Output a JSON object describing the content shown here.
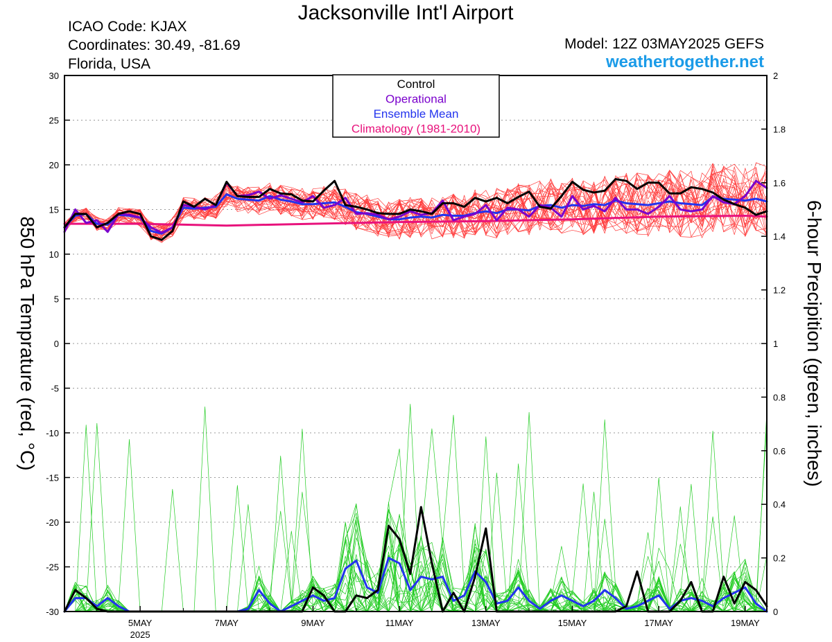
{
  "header": {
    "title": "Jacksonville Int'l Airport",
    "icao": "ICAO Code: KJAX",
    "coordinates": "Coordinates: 30.49, -81.69",
    "region": "Florida, USA",
    "model": "Model: 12Z 03MAY2025 GEFS",
    "site": "weathertogether.net"
  },
  "chart_data": {
    "type": "line",
    "xaxis": {
      "tick_labels": [
        "5MAY",
        "7MAY",
        "9MAY",
        "11MAY",
        "13MAY",
        "15MAY",
        "17MAY",
        "19MAY"
      ],
      "tick_days": [
        5,
        7,
        9,
        11,
        13,
        15,
        17,
        19
      ],
      "year_label": "2025",
      "range_days": [
        3.25,
        19.5
      ]
    },
    "ylabel_left": "850 hPa Temprature (red, °C)",
    "ylabel_right": "6-hour Precipition (green, inches)",
    "ylim_left": [
      -30,
      30
    ],
    "yticks_left": [
      30,
      25,
      20,
      15,
      10,
      5,
      0,
      -5,
      -10,
      -15,
      -20,
      -25,
      -30
    ],
    "ylim_right": [
      0,
      2
    ],
    "yticks_right": [
      2,
      1.8,
      1.6,
      1.4,
      1.2,
      1,
      0.8,
      0.6,
      0.4,
      0.2,
      0
    ],
    "grid": "horizontal dotted",
    "legend": {
      "placement": "top-center",
      "entries": [
        {
          "label": "Control",
          "color": "#000000"
        },
        {
          "label": "Operational",
          "color": "#7a00cc"
        },
        {
          "label": "Ensemble Mean",
          "color": "#2233ee"
        },
        {
          "label": "Climatology (1981-2010)",
          "color": "#e8127c"
        }
      ]
    },
    "colors": {
      "member_temp": "#ff3b3b",
      "member_precip": "#22cc22",
      "control": "#000000",
      "operational": "#7a00cc",
      "mean": "#2233ee",
      "climatology": "#e8127c"
    },
    "temperature": {
      "control": {
        "x": [
          3.25,
          3.5,
          3.75,
          4,
          4.25,
          4.5,
          4.75,
          5,
          5.25,
          5.5,
          5.75,
          6,
          6.25,
          6.5,
          6.75,
          7,
          7.25,
          7.5,
          7.75,
          8,
          8.25,
          8.5,
          8.75,
          9,
          9.25,
          9.5,
          9.75,
          10,
          10.25,
          10.5,
          10.75,
          11,
          11.25,
          11.5,
          11.75,
          12,
          12.25,
          12.5,
          12.75,
          13,
          13.25,
          13.5,
          13.75,
          14,
          14.25,
          14.5,
          14.75,
          15,
          15.25,
          15.5,
          15.75,
          16,
          16.25,
          16.5,
          16.75,
          17,
          17.25,
          17.5,
          17.75,
          18,
          18.25,
          18.5,
          18.75,
          19,
          19.25,
          19.5
        ],
        "y": [
          13,
          14.5,
          14.5,
          13,
          13.5,
          14.5,
          14.8,
          14.5,
          12,
          11.6,
          12.6,
          15.9,
          15.3,
          16.2,
          15.5,
          18.1,
          16.5,
          16.4,
          16.4,
          17.3,
          16.8,
          16.7,
          16,
          15.9,
          17.1,
          18.2,
          15.5,
          15.3,
          15,
          14.6,
          14.5,
          14.5,
          15,
          14.8,
          14.5,
          15.7,
          15.7,
          15.3,
          16.3,
          15.9,
          16.3,
          15.7,
          16.4,
          17,
          15.3,
          15.1,
          16.5,
          18.1,
          17.2,
          16.9,
          17.1,
          18.4,
          18.2,
          17.3,
          18,
          18,
          16.8,
          16.8,
          17.5,
          17.3,
          16.9,
          16.1,
          15.6,
          15.2,
          14.4,
          14.8
        ]
      },
      "operational": {
        "x": [
          3.25,
          3.5,
          3.75,
          4,
          4.25,
          4.5,
          4.75,
          5,
          5.25,
          5.5,
          5.75,
          6,
          6.25,
          6.5,
          6.75,
          7,
          7.25,
          7.5,
          7.75,
          8,
          8.25,
          8.5,
          8.75,
          9,
          9.25,
          9.5,
          9.75,
          10,
          10.25,
          10.5,
          10.75,
          11,
          11.25,
          11.5,
          11.75,
          12,
          12.25,
          12.5,
          12.75,
          13,
          13.25,
          13.5,
          13.75,
          14,
          14.25,
          14.5,
          14.75,
          15,
          15.25,
          15.5,
          15.75,
          16,
          16.25,
          16.5,
          16.75,
          17,
          17.25,
          17.5,
          17.75,
          18,
          18.25,
          18.5,
          18.75,
          19,
          19.25,
          19.5
        ],
        "y": [
          12.5,
          15,
          13.5,
          13.8,
          12.5,
          14.5,
          14.4,
          14.1,
          13,
          12.4,
          13,
          15.5,
          15.3,
          15,
          15.5,
          18,
          16.5,
          16.6,
          17,
          16.2,
          16.6,
          16.2,
          15.8,
          16.5,
          15.2,
          15.5,
          16.3,
          14.5,
          14.6,
          14.4,
          13.9,
          14.2,
          14.8,
          14.4,
          14.6,
          16,
          13.8,
          14.2,
          14.5,
          15.5,
          13.8,
          15.2,
          15,
          14.2,
          15.5,
          15.2,
          14.2,
          16.5,
          15,
          15.4,
          14.8,
          16.3,
          15,
          15,
          14.5,
          15.3,
          16.5,
          15,
          14.8,
          15,
          16.5,
          15.8,
          15.6,
          16.5,
          18.2,
          17.4
        ]
      },
      "mean": {
        "x": [
          3.25,
          3.5,
          3.75,
          4,
          4.25,
          4.5,
          4.75,
          5,
          5.25,
          5.5,
          5.75,
          6,
          6.25,
          6.5,
          6.75,
          7,
          7.25,
          7.5,
          7.75,
          8,
          8.25,
          8.5,
          8.75,
          9,
          9.25,
          9.5,
          9.75,
          10,
          10.25,
          10.5,
          10.75,
          11,
          11.25,
          11.5,
          11.75,
          12,
          12.25,
          12.5,
          12.75,
          13,
          13.25,
          13.5,
          13.75,
          14,
          14.25,
          14.5,
          14.75,
          15,
          15.25,
          15.5,
          15.75,
          16,
          16.25,
          16.5,
          16.75,
          17,
          17.25,
          17.5,
          17.75,
          18,
          18.25,
          18.5,
          18.75,
          19,
          19.25,
          19.5
        ],
        "y": [
          13,
          14.3,
          14.5,
          13.4,
          13.3,
          14.4,
          14.3,
          14.1,
          12.6,
          12.3,
          13,
          15.2,
          15.1,
          15.2,
          15.3,
          16.7,
          16.2,
          16.1,
          16,
          16.5,
          16.1,
          15.9,
          15.6,
          15.6,
          15.7,
          15.8,
          15.3,
          14.7,
          14.5,
          14.2,
          13.9,
          13.9,
          14.1,
          14.2,
          14.1,
          14.4,
          14.3,
          14.3,
          14.6,
          14.8,
          14.6,
          15,
          15,
          14.9,
          15.4,
          15.5,
          15.2,
          15.5,
          15.4,
          15.6,
          15.5,
          16,
          15.7,
          15.6,
          15.5,
          15.7,
          15.9,
          15.7,
          15.6,
          15.5,
          16.4,
          16.2,
          16.1,
          16,
          16.2,
          15.9
        ]
      },
      "climatology": {
        "x": [
          3.25,
          5,
          7,
          9,
          11,
          13,
          15,
          17,
          19,
          19.5
        ],
        "y": [
          13.4,
          13.4,
          13.2,
          13.4,
          13.6,
          13.7,
          13.9,
          14.2,
          14.3,
          14.2
        ]
      }
    },
    "precipitation": {
      "control": {
        "x": [
          3.25,
          3.5,
          3.75,
          4,
          4.25,
          4.5,
          4.75,
          5,
          5.25,
          5.5,
          5.75,
          6,
          6.25,
          6.5,
          6.75,
          7,
          7.25,
          7.5,
          7.75,
          8,
          8.25,
          8.5,
          8.75,
          9,
          9.25,
          9.5,
          9.75,
          10,
          10.25,
          10.5,
          10.75,
          11,
          11.25,
          11.5,
          11.75,
          12,
          12.25,
          12.5,
          12.75,
          13,
          13.25,
          13.5,
          13.75,
          14,
          14.25,
          14.5,
          14.75,
          15,
          15.25,
          15.5,
          15.75,
          16,
          16.25,
          16.5,
          16.75,
          17,
          17.25,
          17.5,
          17.75,
          18,
          18.25,
          18.5,
          18.75,
          19,
          19.25,
          19.5
        ],
        "y": [
          0,
          0.08,
          0.05,
          0.01,
          0,
          0,
          0,
          0,
          0,
          0,
          0,
          0,
          0,
          0,
          0,
          0,
          0,
          0,
          0,
          0,
          0,
          0,
          0,
          0.09,
          0.06,
          0,
          0,
          0.06,
          0.05,
          0.08,
          0.32,
          0.27,
          0.14,
          0.39,
          0.18,
          0,
          0.07,
          0,
          0.13,
          0.31,
          0,
          0,
          0,
          0,
          0,
          0,
          0,
          0,
          0,
          0,
          0,
          0,
          0.02,
          0.15,
          0,
          0,
          0,
          0.04,
          0.11,
          0,
          0,
          0.13,
          0.03,
          0.11,
          0.08,
          0.02
        ]
      },
      "mean": {
        "x": [
          3.25,
          3.5,
          3.75,
          4,
          4.25,
          4.5,
          4.75,
          5,
          5.25,
          5.5,
          5.75,
          6,
          6.25,
          6.5,
          6.75,
          7,
          7.25,
          7.5,
          7.75,
          8,
          8.25,
          8.5,
          8.75,
          9,
          9.25,
          9.5,
          9.75,
          10,
          10.25,
          10.5,
          10.75,
          11,
          11.25,
          11.5,
          11.75,
          12,
          12.25,
          12.5,
          12.75,
          13,
          13.25,
          13.5,
          13.75,
          14,
          14.25,
          14.5,
          14.75,
          15,
          15.25,
          15.5,
          15.75,
          16,
          16.25,
          16.5,
          16.75,
          17,
          17.25,
          17.5,
          17.75,
          18,
          18.25,
          18.5,
          18.75,
          19,
          19.25,
          19.5
        ],
        "y": [
          0,
          0.05,
          0.05,
          0.02,
          0.05,
          0.02,
          0,
          0,
          0,
          0,
          0,
          0,
          0,
          0,
          0,
          0,
          0,
          0.01,
          0.08,
          0.03,
          0,
          0.02,
          0.04,
          0.06,
          0.04,
          0.05,
          0.16,
          0.19,
          0.09,
          0.07,
          0.2,
          0.18,
          0.08,
          0.13,
          0.12,
          0.13,
          0.04,
          0.06,
          0.15,
          0.11,
          0.03,
          0.04,
          0.09,
          0.04,
          0.01,
          0.04,
          0.06,
          0.04,
          0.02,
          0.04,
          0.08,
          0.05,
          0.01,
          0.02,
          0.04,
          0.06,
          0.01,
          0.04,
          0.05,
          0.04,
          0.02,
          0.05,
          0.07,
          0.09,
          0.03,
          0
        ]
      }
    }
  }
}
